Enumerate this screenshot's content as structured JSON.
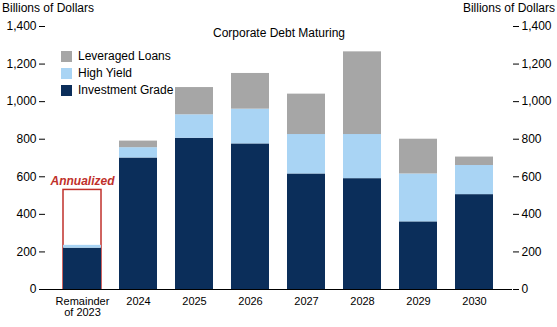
{
  "chart_data": {
    "type": "bar",
    "stacked": true,
    "title": "Corporate Debt Maturing",
    "ylabel": "Billions of Dollars",
    "ylabel_right": "Billions of Dollars",
    "categories": [
      "Remainder\nof 2023",
      "2024",
      "2025",
      "2026",
      "2027",
      "2028",
      "2029",
      "2030"
    ],
    "series": [
      {
        "name": "Investment Grade",
        "color": "#0b2e5a",
        "values": [
          220,
          700,
          805,
          775,
          615,
          590,
          360,
          505
        ]
      },
      {
        "name": "High Yield",
        "color": "#a9d4f4",
        "values": [
          15,
          55,
          125,
          185,
          210,
          235,
          255,
          155
        ]
      },
      {
        "name": "Leveraged Loans",
        "color": "#a6a6a6",
        "values": [
          0,
          35,
          145,
          190,
          215,
          440,
          185,
          45
        ]
      }
    ],
    "annotations": [
      {
        "text": "Annualized",
        "category": "Remainder\nof 2023",
        "value": 530,
        "color": "#c0302b"
      }
    ],
    "ylim": [
      0,
      1400
    ],
    "yticks": [
      0,
      200,
      400,
      600,
      800,
      {
        "value": 1000,
        "label": "1,000"
      },
      {
        "value": 1200,
        "label": "1,200"
      },
      {
        "value": 1400,
        "label": "1,400"
      }
    ],
    "grid": false,
    "legend": "top-left"
  }
}
